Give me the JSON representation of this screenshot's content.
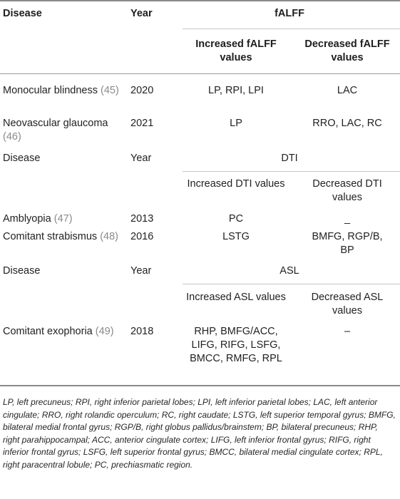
{
  "header": {
    "disease": "Disease",
    "year": "Year",
    "falff": "fALFF",
    "increased": "Increased fALFF values",
    "decreased": "Decreased fALFF values"
  },
  "rows_falff": [
    {
      "disease": "Monocular blindness",
      "ref": "(45)",
      "year": "2020",
      "increased": "LP, RPI, LPI",
      "decreased": "LAC"
    },
    {
      "disease": "Neovascular glaucoma",
      "ref": "(46)",
      "year": "2021",
      "increased": "LP",
      "decreased": "RRO, LAC, RC"
    }
  ],
  "dti_header": {
    "disease": "Disease",
    "year": "Year",
    "group": "DTI",
    "increased": "Increased DTI values",
    "decreased": "Decreased DTI values"
  },
  "rows_dti": [
    {
      "disease": "Amblyopia",
      "ref": "(47)",
      "year": "2013",
      "increased": "PC",
      "decreased": "_"
    },
    {
      "disease": "Comitant strabismus",
      "ref": "(48)",
      "year": "2016",
      "increased": "LSTG",
      "decreased": "BMFG, RGP/B, BP"
    }
  ],
  "asl_header": {
    "disease": "Disease",
    "year": "Year",
    "group": "ASL",
    "increased": "Increased ASL values",
    "decreased": "Decreased ASL values"
  },
  "rows_asl": [
    {
      "disease": "Comitant exophoria",
      "ref": "(49)",
      "year": "2018",
      "increased": "RHP, BMFG/ACC, LIFG, RIFG, LSFG, BMCC, RMFG, RPL",
      "decreased": "–"
    }
  ],
  "footnote": "LP, left precuneus; RPI, right inferior parietal lobes; LPI, left inferior parietal lobes; LAC, left anterior cingulate; RRO, right rolandic operculum; RC, right caudate; LSTG, left superior temporal gyrus; BMFG, bilateral medial frontal gyrus; RGP/B, right globus pallidus/brainstem; BP, bilateral precuneus; RHP, right parahippocampal; ACC, anterior cingulate cortex; LIFG, left inferior frontal gyrus; RIFG, right inferior frontal gyrus; LSFG, left superior frontal gyrus; BMCC, bilateral medial cingulate cortex; RPL, right paracentral lobule; PC, prechiasmatic region."
}
